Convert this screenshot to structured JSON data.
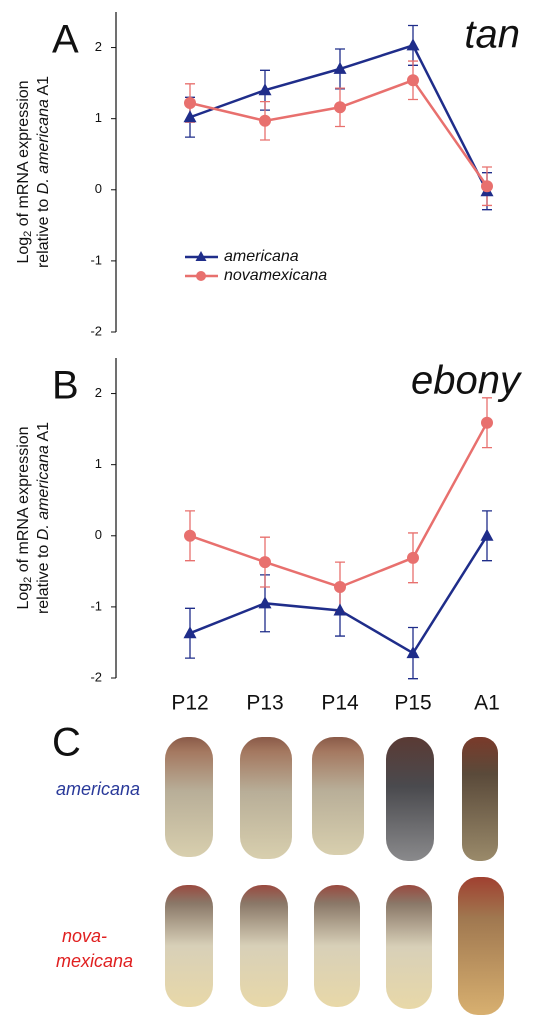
{
  "chart_data": [
    {
      "type": "line",
      "panel": "A",
      "title": "tan",
      "ylabel": [
        "Log",
        "2",
        " of mRNA expression",
        "relative to ",
        "D. americana",
        " A1"
      ],
      "ylim": [
        -2,
        2.5
      ],
      "yticks": [
        -2,
        -1,
        0,
        1,
        2
      ],
      "legend": "center-left",
      "series": [
        {
          "name": "americana",
          "color": "#1f2d8a",
          "marker": "triangle",
          "values": [
            1.02,
            1.4,
            1.7,
            2.03,
            -0.02
          ],
          "errors": [
            0.28,
            0.28,
            0.28,
            0.28,
            0.26
          ]
        },
        {
          "name": "novamexicana",
          "color": "#e8706e",
          "marker": "circle",
          "values": [
            1.22,
            0.97,
            1.16,
            1.54,
            0.05
          ],
          "errors": [
            0.27,
            0.27,
            0.27,
            0.27,
            0.27
          ]
        }
      ]
    },
    {
      "type": "line",
      "panel": "B",
      "title": "ebony",
      "ylabel": [
        "Log",
        "2",
        " of mRNA expression",
        "relative to ",
        "D. americana",
        " A1"
      ],
      "categories": [
        "P12",
        "P13",
        "P14",
        "P15",
        "A1"
      ],
      "ylim": [
        -2,
        2.5
      ],
      "yticks": [
        -2,
        -1,
        0,
        1,
        2
      ],
      "series": [
        {
          "name": "americana",
          "color": "#1f2d8a",
          "marker": "triangle",
          "values": [
            -1.37,
            -0.95,
            -1.05,
            -1.65,
            0
          ],
          "errors": [
            0.35,
            0.4,
            0.36,
            0.36,
            0.35
          ]
        },
        {
          "name": "novamexicana",
          "color": "#e8706e",
          "marker": "circle",
          "values": [
            0,
            -0.37,
            -0.72,
            -0.31,
            1.59
          ],
          "errors": [
            0.35,
            0.35,
            0.35,
            0.35,
            0.35
          ]
        }
      ]
    }
  ],
  "panel_c": {
    "label": "C",
    "rows": [
      [
        "americana"
      ],
      [
        "nova-",
        "mexicana"
      ]
    ]
  }
}
